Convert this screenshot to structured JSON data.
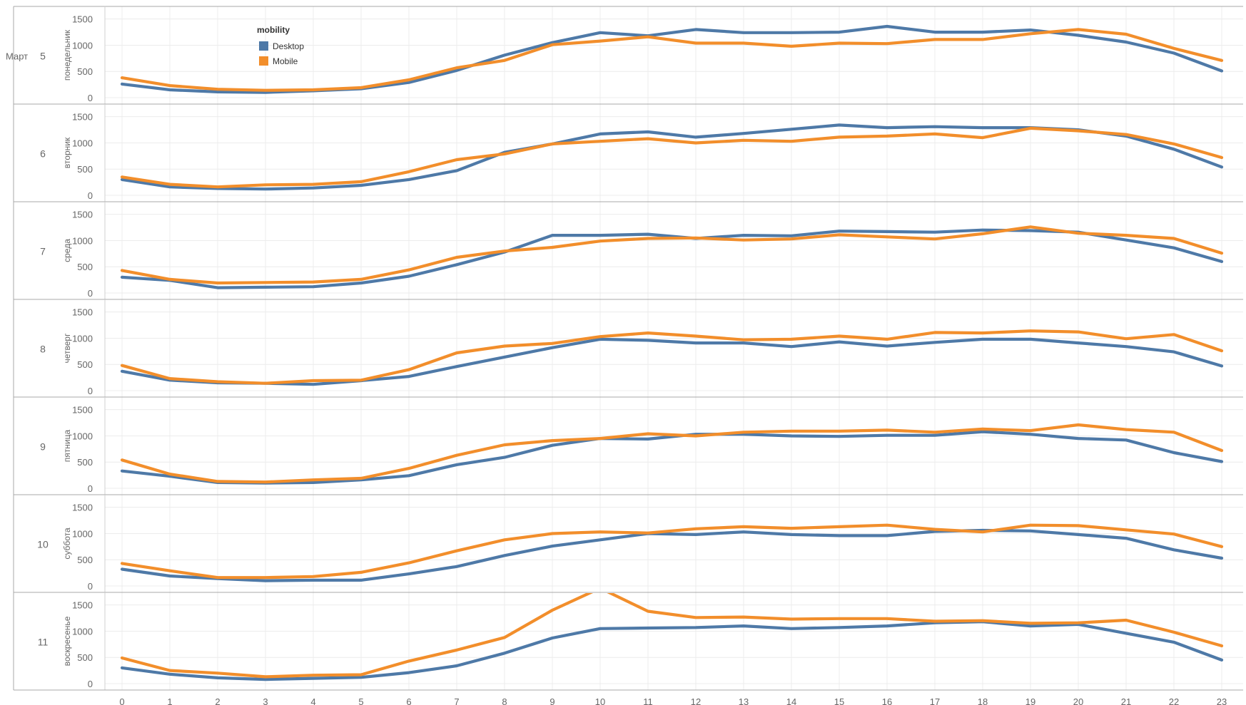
{
  "chart_data": {
    "type": "line",
    "month_label": "Март",
    "legend": {
      "title": "mobility",
      "placement": "top-left"
    },
    "series_meta": [
      {
        "name": "Desktop",
        "color": "#4e79a7"
      },
      {
        "name": "Mobile",
        "color": "#f28e2b"
      }
    ],
    "x": [
      0,
      1,
      2,
      3,
      4,
      5,
      6,
      7,
      8,
      9,
      10,
      11,
      12,
      13,
      14,
      15,
      16,
      17,
      18,
      19,
      20,
      21,
      22,
      23
    ],
    "y_ticks": [
      0,
      500,
      1000,
      1500
    ],
    "ylim": [
      0,
      1550
    ],
    "grid": true,
    "panels": [
      {
        "day_num": "5",
        "weekday": "понедельник",
        "series": [
          {
            "name": "Desktop",
            "values": [
              260,
              150,
              110,
              100,
              130,
              170,
              290,
              520,
              810,
              1050,
              1240,
              1180,
              1300,
              1240,
              1240,
              1250,
              1360,
              1250,
              1250,
              1290,
              1190,
              1060,
              850,
              510
            ]
          },
          {
            "name": "Mobile",
            "values": [
              380,
              230,
              160,
              140,
              150,
              190,
              340,
              570,
              710,
              1010,
              1080,
              1160,
              1040,
              1040,
              980,
              1040,
              1030,
              1110,
              1110,
              1220,
              1300,
              1210,
              940,
              710
            ]
          }
        ]
      },
      {
        "day_num": "6",
        "weekday": "вторник",
        "series": [
          {
            "name": "Desktop",
            "values": [
              300,
              160,
              130,
              120,
              140,
              190,
              300,
              470,
              820,
              980,
              1170,
              1210,
              1110,
              1180,
              1260,
              1340,
              1290,
              1310,
              1290,
              1290,
              1250,
              1130,
              880,
              540
            ]
          },
          {
            "name": "Mobile",
            "values": [
              350,
              210,
              160,
              200,
              210,
              260,
              450,
              680,
              790,
              980,
              1030,
              1080,
              1000,
              1050,
              1030,
              1110,
              1130,
              1170,
              1100,
              1280,
              1230,
              1160,
              980,
              720
            ]
          }
        ]
      },
      {
        "day_num": "7",
        "weekday": "среда",
        "series": [
          {
            "name": "Desktop",
            "values": [
              300,
              240,
              100,
              110,
              120,
              190,
              320,
              540,
              780,
              1100,
              1100,
              1120,
              1040,
              1100,
              1090,
              1180,
              1170,
              1160,
              1200,
              1190,
              1160,
              1010,
              860,
              600
            ]
          },
          {
            "name": "Mobile",
            "values": [
              430,
              260,
              190,
              200,
              210,
              260,
              440,
              680,
              800,
              870,
              990,
              1040,
              1050,
              1010,
              1030,
              1110,
              1070,
              1030,
              1130,
              1260,
              1140,
              1100,
              1040,
              760
            ]
          }
        ]
      },
      {
        "day_num": "8",
        "weekday": "четверг",
        "series": [
          {
            "name": "Desktop",
            "values": [
              370,
              200,
              150,
              140,
              120,
              190,
              270,
              460,
              640,
              820,
              980,
              960,
              910,
              910,
              840,
              930,
              850,
              920,
              980,
              980,
              910,
              840,
              740,
              470
            ]
          },
          {
            "name": "Mobile",
            "values": [
              480,
              230,
              170,
              140,
              190,
              200,
              400,
              720,
              850,
              900,
              1030,
              1100,
              1040,
              970,
              980,
              1040,
              980,
              1110,
              1100,
              1140,
              1120,
              990,
              1070,
              760
            ]
          }
        ]
      },
      {
        "day_num": "9",
        "weekday": "пятница",
        "series": [
          {
            "name": "Desktop",
            "values": [
              330,
              230,
              110,
              100,
              110,
              160,
              240,
              450,
              590,
              820,
              950,
              940,
              1030,
              1030,
              1000,
              990,
              1010,
              1010,
              1080,
              1030,
              950,
              920,
              680,
              510
            ]
          },
          {
            "name": "Mobile",
            "values": [
              540,
              270,
              130,
              120,
              160,
              190,
              380,
              630,
              830,
              910,
              950,
              1040,
              1000,
              1070,
              1090,
              1090,
              1110,
              1070,
              1130,
              1100,
              1210,
              1120,
              1070,
              720
            ]
          }
        ]
      },
      {
        "day_num": "10",
        "weekday": "суббота",
        "series": [
          {
            "name": "Desktop",
            "values": [
              320,
              190,
              140,
              100,
              110,
              110,
              230,
              370,
              580,
              760,
              880,
              1000,
              980,
              1030,
              980,
              960,
              960,
              1040,
              1060,
              1050,
              980,
              910,
              690,
              530
            ]
          },
          {
            "name": "Mobile",
            "values": [
              430,
              290,
              160,
              160,
              180,
              260,
              440,
              670,
              880,
              1000,
              1030,
              1010,
              1090,
              1130,
              1100,
              1130,
              1160,
              1080,
              1030,
              1160,
              1150,
              1070,
              990,
              750
            ]
          }
        ]
      },
      {
        "day_num": "11",
        "weekday": "воскресенье",
        "series": [
          {
            "name": "Desktop",
            "values": [
              300,
              180,
              110,
              80,
              100,
              120,
              210,
              340,
              580,
              870,
              1050,
              1060,
              1070,
              1100,
              1050,
              1070,
              1100,
              1160,
              1180,
              1100,
              1130,
              960,
              790,
              450
            ]
          },
          {
            "name": "Mobile",
            "values": [
              490,
              250,
              200,
              130,
              160,
              170,
              430,
              640,
              880,
              1400,
              1820,
              1380,
              1260,
              1270,
              1230,
              1240,
              1240,
              1190,
              1200,
              1150,
              1160,
              1210,
              980,
              720
            ]
          }
        ]
      }
    ]
  }
}
